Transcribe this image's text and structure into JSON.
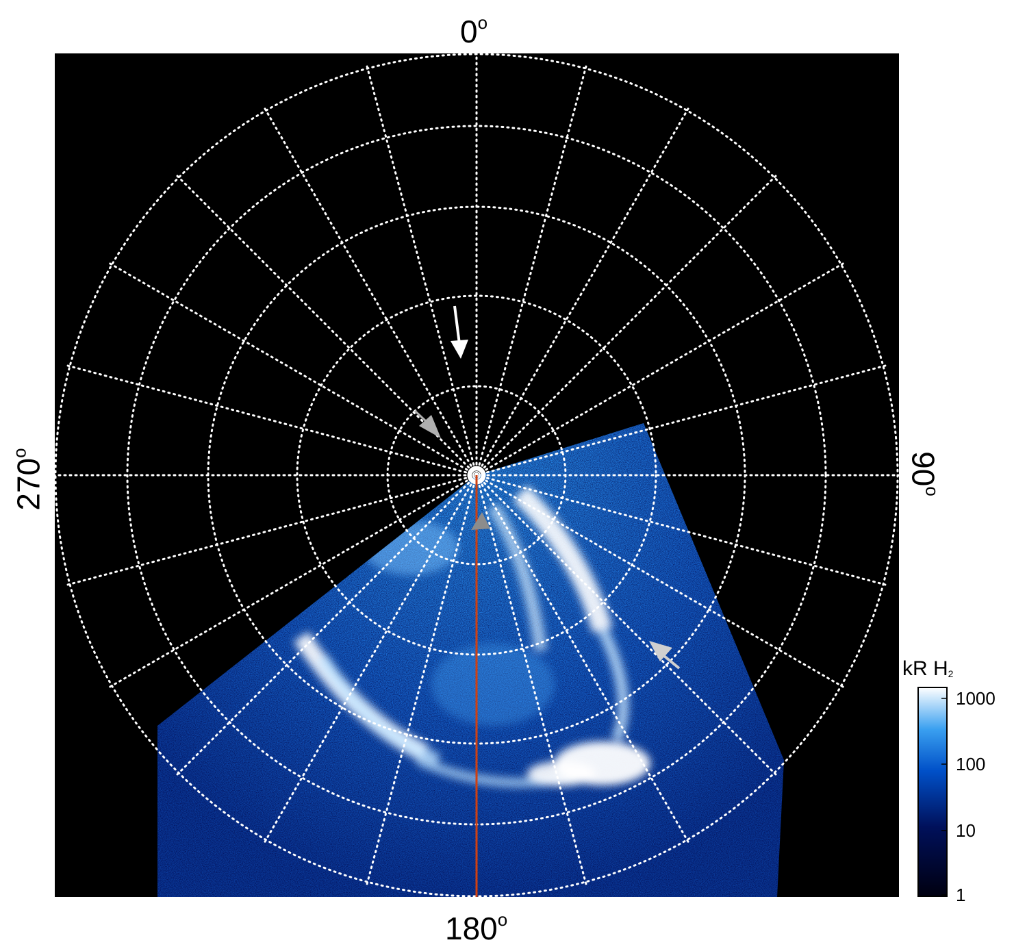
{
  "axis_labels": {
    "top": "0",
    "right": "90",
    "bottom": "180",
    "left": "270",
    "degree_symbol": "o"
  },
  "colorbar": {
    "title": "kR H",
    "title_subscript": "2",
    "ticks": [
      "1000",
      "100",
      "10",
      "1"
    ],
    "scale": "log",
    "range": [
      1,
      1000
    ],
    "colors": [
      "#000010",
      "#00105a",
      "#0050c8",
      "#3aa0f0",
      "#ffffff"
    ]
  },
  "colors": {
    "background": "#000000",
    "grid": "#ffffff",
    "meridian_line": "#d04010",
    "arrow_primary": "#ffffff",
    "arrow_secondary": "#b0b0b0",
    "aurora_dim": "#0a3fa8",
    "aurora_mid": "#1e7fe0",
    "aurora_bright": "#ffffff"
  }
}
